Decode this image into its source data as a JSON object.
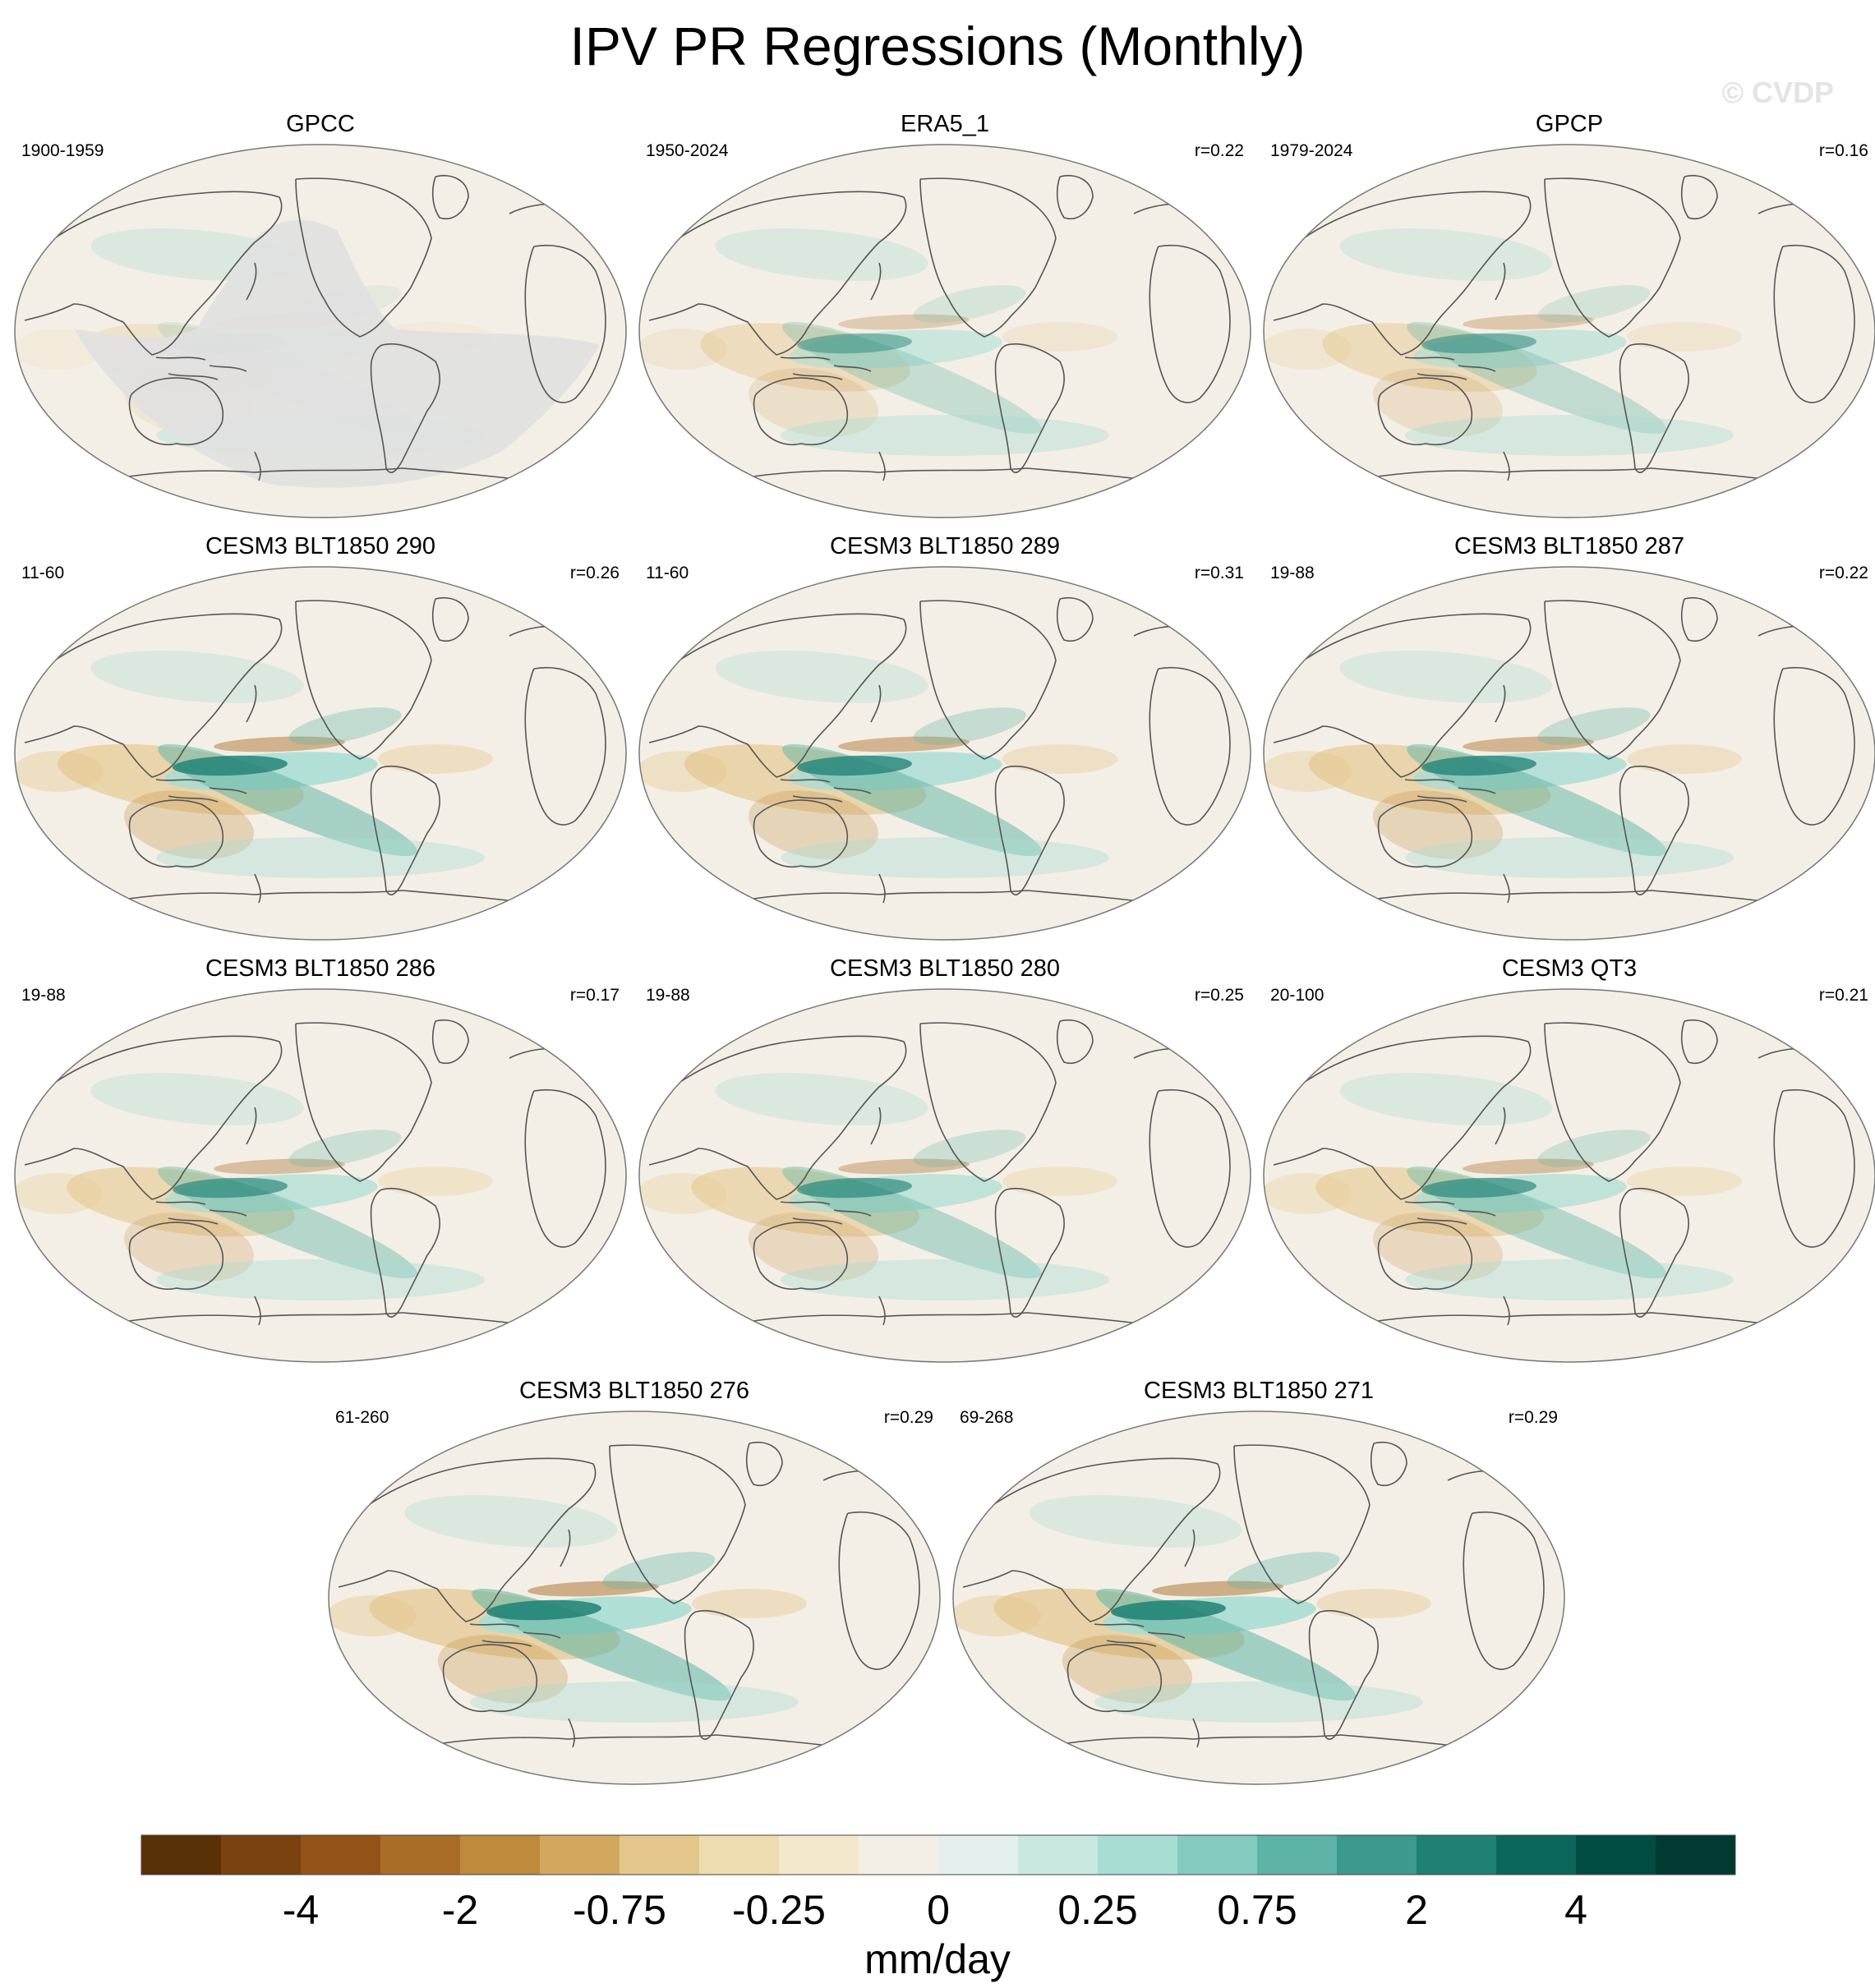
{
  "title": "IPV PR Regressions (Monthly)",
  "watermark": "© CVDP",
  "colors": {
    "land_outline": "#555555",
    "background_neutral": "#f4efe6",
    "missing_gray": "#e0e0e0"
  },
  "panels": [
    {
      "title": "GPCC",
      "period": "1900-1959",
      "corr": "",
      "masked_ocean": true,
      "strength": 0.3
    },
    {
      "title": "ERA5_1",
      "period": "1950-2024",
      "corr": "r=0.22",
      "masked_ocean": false,
      "strength": 0.55
    },
    {
      "title": "GPCP",
      "period": "1979-2024",
      "corr": "r=0.16",
      "masked_ocean": false,
      "strength": 0.6
    },
    {
      "title": "CESM3 BLT1850 290",
      "period": "11-60",
      "corr": "r=0.26",
      "masked_ocean": false,
      "strength": 0.95
    },
    {
      "title": "CESM3 BLT1850 289",
      "period": "11-60",
      "corr": "r=0.31",
      "masked_ocean": false,
      "strength": 0.9
    },
    {
      "title": "CESM3 BLT1850 287",
      "period": "19-88",
      "corr": "r=0.22",
      "masked_ocean": false,
      "strength": 0.9
    },
    {
      "title": "CESM3 BLT1850 286",
      "period": "19-88",
      "corr": "r=0.17",
      "masked_ocean": false,
      "strength": 0.75
    },
    {
      "title": "CESM3 BLT1850 280",
      "period": "19-88",
      "corr": "r=0.25",
      "masked_ocean": false,
      "strength": 0.75
    },
    {
      "title": "CESM3 QT3",
      "period": "20-100",
      "corr": "r=0.21",
      "masked_ocean": false,
      "strength": 0.75
    },
    {
      "title": "CESM3 BLT1850 276",
      "period": "61-260",
      "corr": "r=0.29",
      "masked_ocean": false,
      "strength": 1.0
    },
    {
      "title": "CESM3 BLT1850 271",
      "period": "69-268",
      "corr": "r=0.29",
      "masked_ocean": false,
      "strength": 1.0
    }
  ],
  "colorbar": {
    "colors": [
      "#5a3006",
      "#7a420e",
      "#935318",
      "#a96d27",
      "#c08a3c",
      "#d4a75e",
      "#e4c68b",
      "#eedcb0",
      "#f4e8cc",
      "#f4efe6",
      "#e3f0ed",
      "#c9e8e2",
      "#a8ddd3",
      "#82cbbe",
      "#5db4a6",
      "#3b9a8c",
      "#1f8073",
      "#0b675b",
      "#024d43",
      "#003a30"
    ],
    "tick_labels": [
      "-4",
      "-2",
      "-0.75",
      "-0.25",
      "0",
      "0.25",
      "0.75",
      "2",
      "4"
    ],
    "units": "mm/day"
  }
}
